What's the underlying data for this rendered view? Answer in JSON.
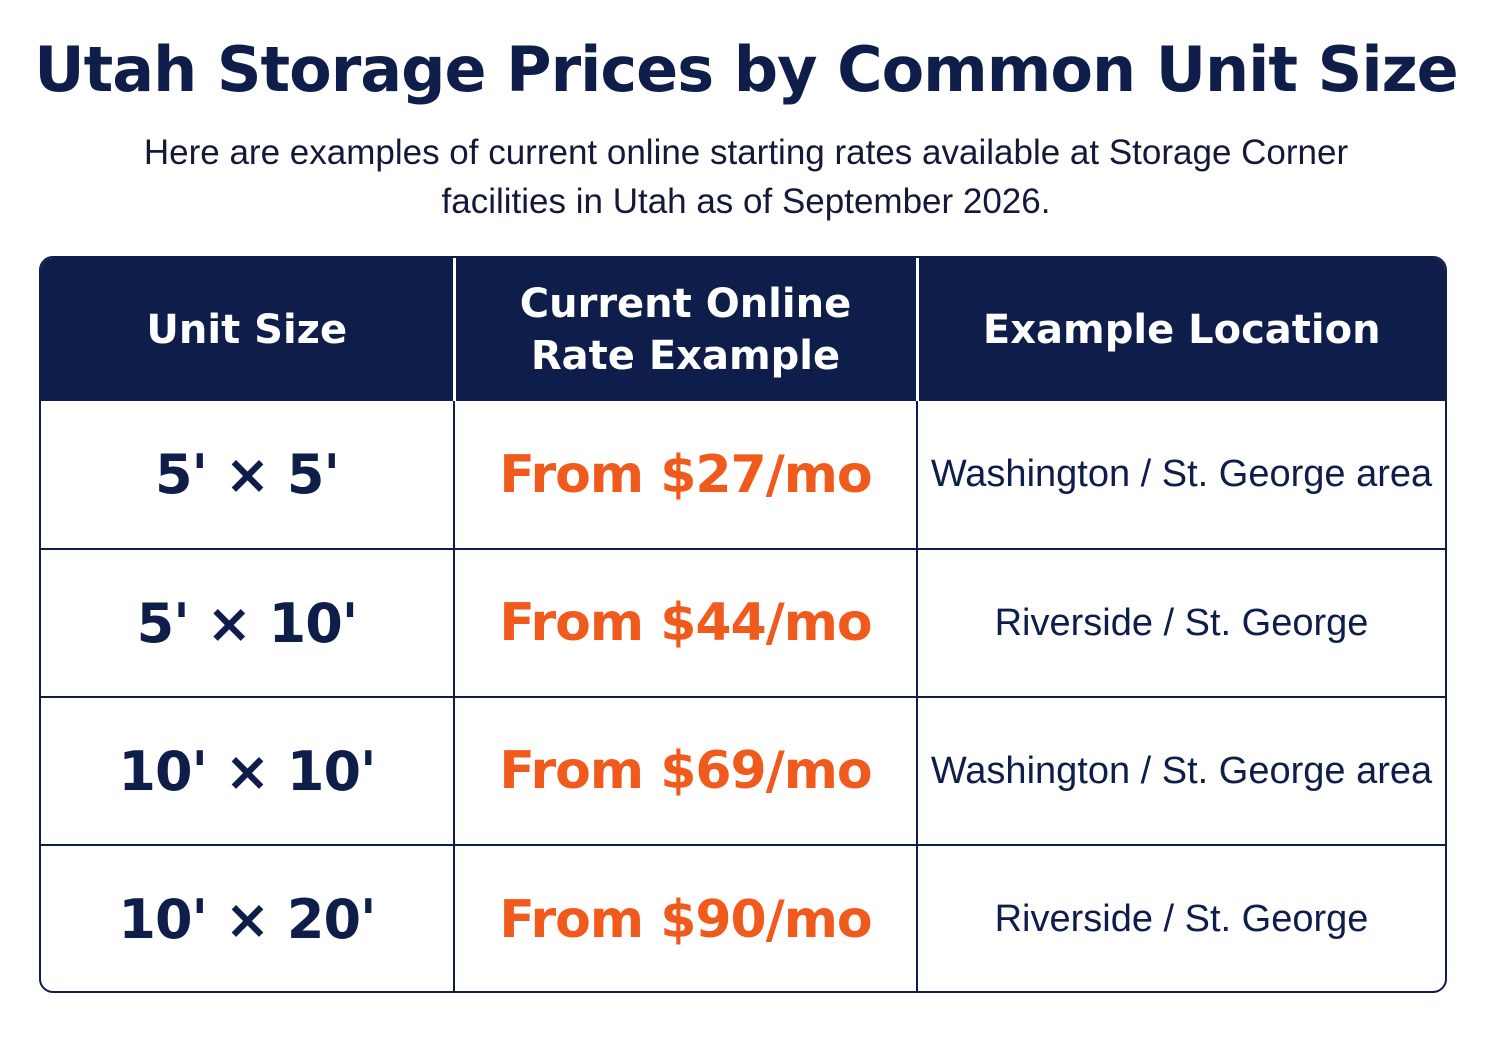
{
  "header": {
    "title": "Utah Storage Prices by Common Unit Size",
    "subtitle": "Here are examples of current online starting rates available at Storage Corner facilities in Utah as of September 2026."
  },
  "table": {
    "columns": [
      "Unit Size",
      "Current Online Rate Example",
      "Example Location"
    ],
    "rows": [
      {
        "size": "5' × 5'",
        "rate": "From $27/mo",
        "location": "Washington / St. George area"
      },
      {
        "size": "5' × 10'",
        "rate": "From $44/mo",
        "location": "Riverside / St. George"
      },
      {
        "size": "10' × 10'",
        "rate": "From $69/mo",
        "location": "Washington / St. George area"
      },
      {
        "size": "10' × 20'",
        "rate": "From $90/mo",
        "location": "Riverside / St. George"
      }
    ]
  },
  "colors": {
    "navy": "#0f1d4a",
    "accent_orange": "#f05a1c",
    "header_text": "#ffffff"
  }
}
